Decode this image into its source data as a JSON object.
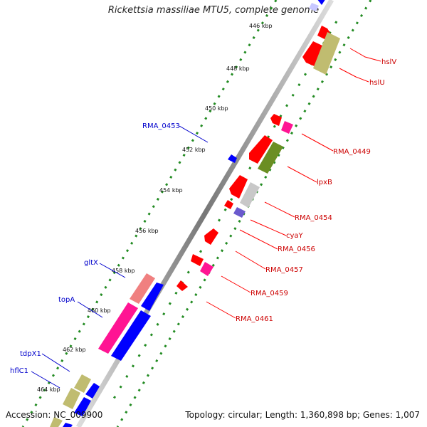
{
  "title": "Rickettsia massiliae MTU5, complete genome",
  "footer": {
    "accession": "Accession: NC_009900",
    "topology": "Topology: circular; Length: 1,360,898 bp; Genes: 1,007"
  },
  "ticks": [
    "446 kbp",
    "448 kbp",
    "450 kbp",
    "452 kbp",
    "454 kbp",
    "456 kbp",
    "458 kbp",
    "460 kbp",
    "462 kbp",
    "464 kbp"
  ],
  "genes_right": [
    "hslV",
    "hslU",
    "RMA_0449",
    "lpxB",
    "RMA_0454",
    "cyaY",
    "RMA_0456",
    "RMA_0457",
    "RMA_0459",
    "RMA_0461"
  ],
  "genes_left": [
    "RMA_0453",
    "gltX",
    "topA",
    "tdpX1",
    "hflC1"
  ],
  "colors": {
    "red": "#ff0000",
    "blue": "#0000ff",
    "khaki": "#c0bc70",
    "pink": "#ff1493",
    "salmon": "#f08080",
    "olive": "#6b8e23",
    "gray": "#c8c8c8",
    "purple": "#6a5acd",
    "label_red": "#cc0000",
    "label_blue": "#0000cc",
    "dot_green": "#228b22"
  }
}
